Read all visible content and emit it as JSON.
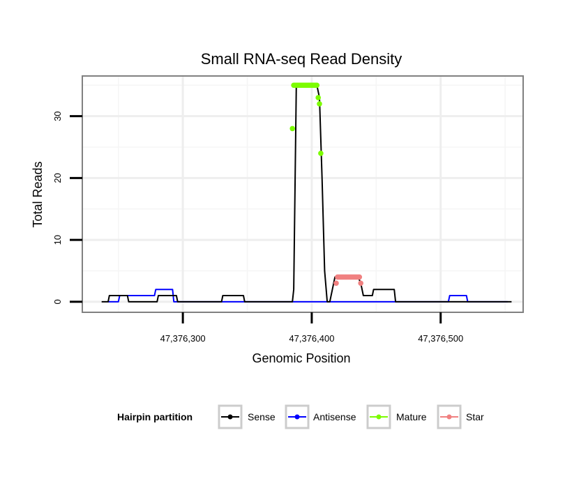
{
  "chart_data": {
    "type": "line",
    "title": "Small RNA-seq Read Density",
    "xlabel": "Genomic Position",
    "ylabel": "Total Reads",
    "xlim": [
      47376222,
      47376564
    ],
    "ylim": [
      -1.7,
      36.5
    ],
    "x_ticks": [
      47376300,
      47376400,
      47376500
    ],
    "x_tick_labels": [
      "47,376,300",
      "47,376,400",
      "47,376,500"
    ],
    "y_ticks": [
      0,
      10,
      20,
      30
    ],
    "y_tick_labels": [
      "0",
      "10",
      "20",
      "30"
    ],
    "grid": true,
    "legend": {
      "title": "Hairpin partition",
      "position": "bottom",
      "entries": [
        "Sense",
        "Antisense",
        "Mature",
        "Star"
      ]
    },
    "series": [
      {
        "name": "Sense",
        "color": "#000000",
        "kind": "line",
        "x": [
          47376237,
          47376242,
          47376243,
          47376257,
          47376258,
          47376280,
          47376281,
          47376295,
          47376296,
          47376330,
          47376331,
          47376347,
          47376348,
          47376385,
          47376386,
          47376388,
          47376390,
          47376404,
          47376406,
          47376408,
          47376410,
          47376412,
          47376414,
          47376416,
          47376418,
          47376436,
          47376438,
          47376440,
          47376441,
          47376447,
          47376448,
          47376464,
          47376465,
          47376555
        ],
        "values": [
          0,
          0,
          1,
          1,
          0,
          0,
          1,
          1,
          0,
          0,
          1,
          1,
          0,
          0,
          2,
          35,
          35,
          35,
          33,
          20,
          5,
          0,
          0,
          2,
          4,
          4,
          3,
          1,
          1,
          1,
          2,
          2,
          0,
          0
        ]
      },
      {
        "name": "Antisense",
        "color": "#0000ff",
        "kind": "line",
        "x": [
          47376242,
          47376250,
          47376251,
          47376262,
          47376263,
          47376278,
          47376279,
          47376292,
          47376293,
          47376506,
          47376507,
          47376520,
          47376521,
          47376552
        ],
        "values": [
          0,
          0,
          1,
          1,
          1,
          1,
          2,
          2,
          0,
          0,
          1,
          1,
          0,
          0
        ]
      },
      {
        "name": "Mature",
        "color": "#7cfc00",
        "kind": "points",
        "x": [
          47376385,
          47376386,
          47376387,
          47376388,
          47376389,
          47376390,
          47376391,
          47376392,
          47376393,
          47376394,
          47376395,
          47376396,
          47376397,
          47376398,
          47376399,
          47376400,
          47376401,
          47376402,
          47376403,
          47376404,
          47376405,
          47376406,
          47376407
        ],
        "values": [
          28,
          35,
          35,
          35,
          35,
          35,
          35,
          35,
          35,
          35,
          35,
          35,
          35,
          35,
          35,
          35,
          35,
          35,
          35,
          35,
          33,
          32,
          24
        ]
      },
      {
        "name": "Star",
        "color": "#f08080",
        "kind": "points",
        "x": [
          47376419,
          47376420,
          47376421,
          47376422,
          47376423,
          47376424,
          47376425,
          47376426,
          47376427,
          47376428,
          47376429,
          47376430,
          47376431,
          47376432,
          47376433,
          47376434,
          47376435,
          47376436,
          47376437,
          47376438
        ],
        "values": [
          3,
          4,
          4,
          4,
          4,
          4,
          4,
          4,
          4,
          4,
          4,
          4,
          4,
          4,
          4,
          4,
          4,
          4,
          4,
          3
        ]
      }
    ]
  }
}
